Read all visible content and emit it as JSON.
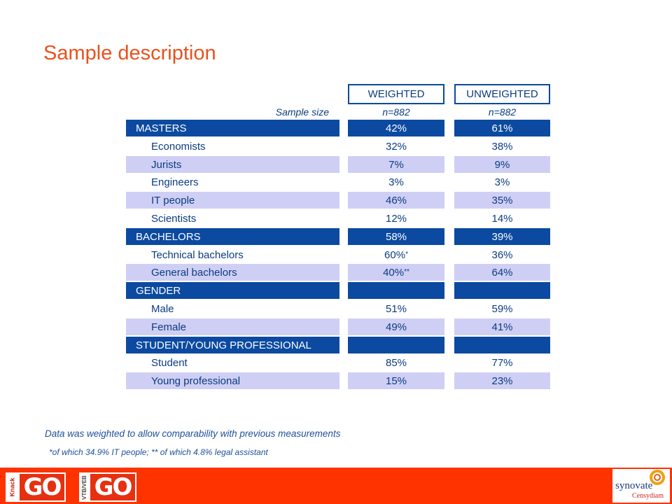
{
  "title": "Sample description",
  "table": {
    "headers": {
      "weighted": "WEIGHTED",
      "unweighted": "UNWEIGHTED"
    },
    "sample_size": {
      "label": "Sample size",
      "weighted": "n=882",
      "unweighted": "n=882"
    },
    "rows": [
      {
        "label": "MASTERS",
        "weighted": "42%",
        "unweighted": "61%",
        "style": "section"
      },
      {
        "label": "Economists",
        "weighted": "32%",
        "unweighted": "38%",
        "style": "plain"
      },
      {
        "label": "Jurists",
        "weighted": "7%",
        "unweighted": "9%",
        "style": "alt"
      },
      {
        "label": "Engineers",
        "weighted": "3%",
        "unweighted": "3%",
        "style": "plain"
      },
      {
        "label": "IT people",
        "weighted": "46%",
        "unweighted": "35%",
        "style": "alt"
      },
      {
        "label": "Scientists",
        "weighted": "12%",
        "unweighted": "14%",
        "style": "plain"
      },
      {
        "label": "BACHELORS",
        "weighted": "58%",
        "unweighted": "39%",
        "style": "section"
      },
      {
        "label": "Technical bachelors",
        "weighted": "60%",
        "weighted_note": "*",
        "unweighted": "36%",
        "style": "plain"
      },
      {
        "label": "General bachelors",
        "weighted": "40%",
        "weighted_note": "**",
        "unweighted": "64%",
        "style": "alt"
      },
      {
        "label": "GENDER",
        "weighted": "",
        "unweighted": "",
        "style": "section"
      },
      {
        "label": "Male",
        "weighted": "51%",
        "unweighted": "59%",
        "style": "plain"
      },
      {
        "label": "Female",
        "weighted": "49%",
        "unweighted": "41%",
        "style": "alt"
      },
      {
        "label": "STUDENT/YOUNG PROFESSIONAL",
        "weighted": "",
        "unweighted": "",
        "style": "section"
      },
      {
        "label": "Student",
        "weighted": "85%",
        "unweighted": "77%",
        "style": "plain"
      },
      {
        "label": "Young professional",
        "weighted": "15%",
        "unweighted": "23%",
        "style": "alt"
      }
    ]
  },
  "notes": {
    "weighting": "Data was weighted to allow comparability with previous measurements",
    "footnote": "*of which 34.9% IT people; ** of which 4.8% legal assistant"
  },
  "footer": {
    "knack_label": "Knack",
    "go_label": "GO",
    "vtb_label": "VTB/VEB",
    "synovate_brand": "synovate",
    "synovate_sub": "Censydiam",
    "bar_color": "#ff3300"
  }
}
